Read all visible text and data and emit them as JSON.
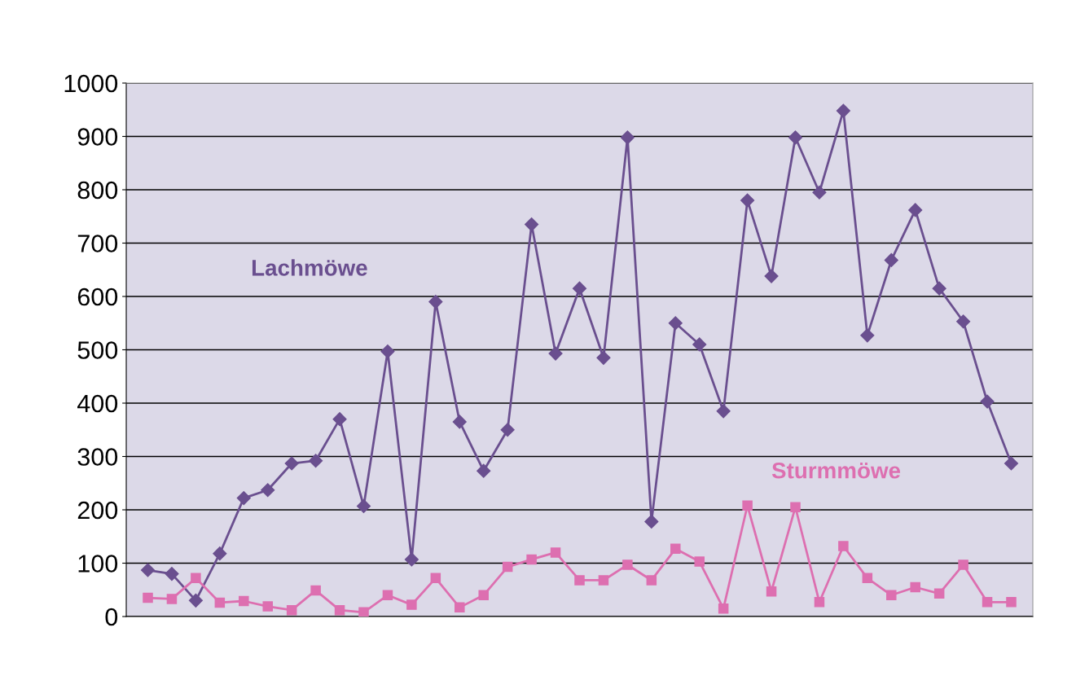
{
  "chart_data": {
    "type": "line",
    "categories": [
      null,
      null,
      null,
      null,
      null,
      null,
      null,
      null,
      null,
      null,
      null,
      null,
      null,
      null,
      null,
      null,
      null,
      null,
      null,
      null,
      null,
      null,
      null,
      null,
      null,
      null,
      null,
      null,
      null,
      null,
      null,
      null,
      null,
      null,
      null,
      null,
      null
    ],
    "series": [
      {
        "name": "Lachmöwe",
        "color": "#6a4f8f",
        "marker": "diamond",
        "values": [
          87,
          80,
          30,
          118,
          222,
          237,
          287,
          292,
          370,
          207,
          497,
          107,
          590,
          365,
          273,
          350,
          735,
          493,
          615,
          485,
          898,
          178,
          550,
          510,
          385,
          780,
          638,
          898,
          795,
          948,
          527,
          668,
          762,
          615,
          553,
          403,
          287
        ]
      },
      {
        "name": "Sturmmöwe",
        "color": "#dd6fb0",
        "marker": "square",
        "values": [
          35,
          33,
          72,
          26,
          29,
          19,
          12,
          49,
          12,
          8,
          40,
          22,
          72,
          17,
          40,
          93,
          107,
          120,
          68,
          68,
          97,
          68,
          127,
          103,
          15,
          208,
          47,
          205,
          27,
          132,
          72,
          40,
          55,
          43,
          97,
          27,
          27
        ]
      }
    ],
    "ylim": [
      0,
      1000
    ],
    "yticks": [
      0,
      100,
      200,
      300,
      400,
      500,
      600,
      700,
      800,
      900,
      1000
    ],
    "grid": "y",
    "legend": false,
    "line_style": "solid"
  }
}
